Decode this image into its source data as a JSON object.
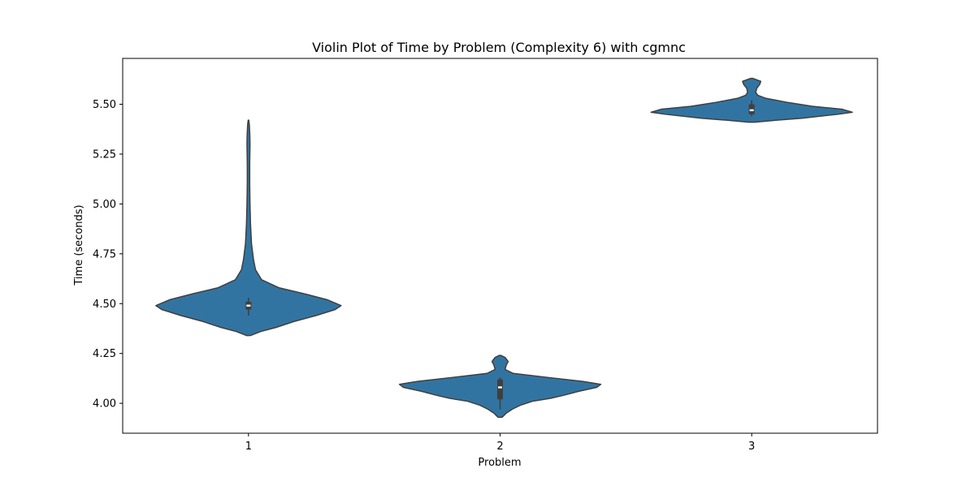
{
  "chart_data": {
    "type": "violin",
    "title": "Violin Plot of Time by Problem (Complexity 6) with cgmnc",
    "xlabel": "Problem",
    "ylabel": "Time (seconds)",
    "categories": [
      "1",
      "2",
      "3"
    ],
    "ylim": [
      3.85,
      5.73
    ],
    "yticks": [
      4.0,
      4.25,
      4.5,
      4.75,
      5.0,
      5.25,
      5.5
    ],
    "ytick_labels": [
      "4.00",
      "4.25",
      "4.50",
      "4.75",
      "5.00",
      "5.25",
      "5.50"
    ],
    "grid": false,
    "colors": {
      "violin_fill": "#3274a1",
      "violin_edge": "#3f3f3f",
      "box": "#3f3f3f",
      "median": "#ffffff"
    },
    "violins": [
      {
        "category": "1",
        "min": 4.34,
        "max": 5.42,
        "q1": 4.47,
        "median": 4.49,
        "q3": 4.51,
        "whisker_low": 4.44,
        "whisker_high": 4.53,
        "density": [
          [
            4.34,
            0.02
          ],
          [
            4.36,
            0.12
          ],
          [
            4.38,
            0.27
          ],
          [
            4.41,
            0.45
          ],
          [
            4.44,
            0.67
          ],
          [
            4.47,
            0.86
          ],
          [
            4.49,
            0.92
          ],
          [
            4.52,
            0.78
          ],
          [
            4.55,
            0.55
          ],
          [
            4.58,
            0.3
          ],
          [
            4.62,
            0.13
          ],
          [
            4.67,
            0.07
          ],
          [
            4.72,
            0.05
          ],
          [
            4.8,
            0.03
          ],
          [
            4.9,
            0.02
          ],
          [
            5.0,
            0.015
          ],
          [
            5.1,
            0.012
          ],
          [
            5.2,
            0.012
          ],
          [
            5.3,
            0.015
          ],
          [
            5.35,
            0.013
          ],
          [
            5.4,
            0.008
          ],
          [
            5.42,
            0.003
          ]
        ]
      },
      {
        "category": "2",
        "min": 3.93,
        "max": 4.24,
        "q1": 4.02,
        "median": 4.08,
        "q3": 4.12,
        "whisker_low": 3.97,
        "whisker_high": 4.13,
        "density": [
          [
            3.93,
            0.02
          ],
          [
            3.95,
            0.06
          ],
          [
            3.97,
            0.12
          ],
          [
            3.99,
            0.2
          ],
          [
            4.01,
            0.32
          ],
          [
            4.025,
            0.5
          ],
          [
            4.04,
            0.63
          ],
          [
            4.06,
            0.78
          ],
          [
            4.08,
            0.96
          ],
          [
            4.095,
            1.0
          ],
          [
            4.11,
            0.82
          ],
          [
            4.13,
            0.47
          ],
          [
            4.15,
            0.13
          ],
          [
            4.17,
            0.05
          ],
          [
            4.19,
            0.06
          ],
          [
            4.21,
            0.08
          ],
          [
            4.23,
            0.05
          ],
          [
            4.24,
            0.01
          ]
        ]
      },
      {
        "category": "3",
        "min": 5.41,
        "max": 5.63,
        "q1": 5.45,
        "median": 5.47,
        "q3": 5.5,
        "whisker_low": 5.44,
        "whisker_high": 5.52,
        "density": [
          [
            5.41,
            0.03
          ],
          [
            5.42,
            0.25
          ],
          [
            5.43,
            0.5
          ],
          [
            5.45,
            0.86
          ],
          [
            5.46,
            1.0
          ],
          [
            5.475,
            0.9
          ],
          [
            5.49,
            0.6
          ],
          [
            5.51,
            0.35
          ],
          [
            5.53,
            0.14
          ],
          [
            5.545,
            0.06
          ],
          [
            5.56,
            0.04
          ],
          [
            5.58,
            0.05
          ],
          [
            5.6,
            0.08
          ],
          [
            5.615,
            0.09
          ],
          [
            5.63,
            0.01
          ]
        ]
      }
    ]
  }
}
